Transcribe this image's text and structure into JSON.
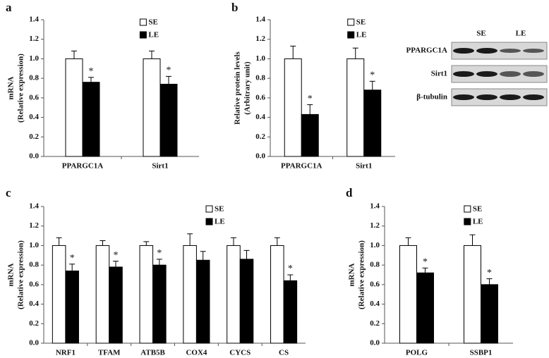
{
  "chart_data": [
    {
      "type": "bar",
      "panel_label": "a",
      "ylabel": [
        "mRNA",
        "(Relative expression)"
      ],
      "categories": [
        "PPARGC1A",
        "Sirt1"
      ],
      "series": [
        {
          "name": "SE",
          "color": "#ffffff",
          "values": [
            1.0,
            1.0
          ],
          "errors": [
            0.08,
            0.08
          ],
          "significance": [
            null,
            null
          ]
        },
        {
          "name": "LE",
          "color": "#000000",
          "values": [
            0.76,
            0.74
          ],
          "errors": [
            0.05,
            0.08
          ],
          "significance": [
            "*",
            "*"
          ]
        }
      ],
      "ylim": [
        0,
        1.4
      ],
      "yticks": [
        {
          "value": 0,
          "label": "0.0"
        },
        0.2,
        0.4,
        0.6,
        0.8,
        {
          "value": 1,
          "label": "1.0"
        },
        1.2,
        1.4
      ],
      "legend": "upper right"
    },
    {
      "type": "bar",
      "panel_label": "b",
      "ylabel": [
        "Relative protein levels",
        "(Arbitrary unit)"
      ],
      "categories": [
        "PPARGC1A",
        "Sirt1"
      ],
      "series": [
        {
          "name": "SE",
          "color": "#ffffff",
          "values": [
            1.0,
            1.0
          ],
          "errors": [
            0.13,
            0.11
          ],
          "significance": [
            null,
            null
          ]
        },
        {
          "name": "LE",
          "color": "#000000",
          "values": [
            0.43,
            0.68
          ],
          "errors": [
            0.1,
            0.09
          ],
          "significance": [
            "*",
            "*"
          ]
        }
      ],
      "ylim": [
        0,
        1.4
      ],
      "yticks": [
        {
          "value": 0,
          "label": "0.0"
        },
        0.2,
        0.4,
        0.6,
        0.8,
        {
          "value": 1,
          "label": "1.0"
        },
        1.2,
        1.4
      ],
      "legend": "upper right",
      "blot_columns": [
        "SE",
        "LE"
      ],
      "blot_rows": [
        "PPARGC1A",
        "Sirt1",
        "β-tubulin"
      ]
    },
    {
      "type": "bar",
      "panel_label": "c",
      "ylabel": [
        "mRNA",
        "(Relative expression)"
      ],
      "categories": [
        "NRF1",
        "TFAM",
        "ATB5B",
        "COX4",
        "CYCS",
        "CS"
      ],
      "series": [
        {
          "name": "SE",
          "color": "#ffffff",
          "values": [
            1.0,
            1.0,
            1.0,
            1.0,
            1.0,
            1.0
          ],
          "errors": [
            0.08,
            0.05,
            0.04,
            0.12,
            0.08,
            0.08
          ],
          "significance": [
            null,
            null,
            null,
            null,
            null,
            null
          ]
        },
        {
          "name": "LE",
          "color": "#000000",
          "values": [
            0.74,
            0.78,
            0.8,
            0.85,
            0.86,
            0.64
          ],
          "errors": [
            0.07,
            0.06,
            0.06,
            0.09,
            0.09,
            0.06
          ],
          "significance": [
            "*",
            "*",
            "*",
            null,
            null,
            "*"
          ]
        }
      ],
      "ylim": [
        0,
        1.4
      ],
      "yticks": [
        {
          "value": 0,
          "label": "0.0"
        },
        0.2,
        0.4,
        0.6,
        0.8,
        {
          "value": 1,
          "label": "1.0"
        },
        1.2,
        1.4
      ],
      "legend": "upper right"
    },
    {
      "type": "bar",
      "panel_label": "d",
      "ylabel": [
        "mRNA",
        "(Relative expression)"
      ],
      "categories": [
        "POLG",
        "SSBP1"
      ],
      "series": [
        {
          "name": "SE",
          "color": "#ffffff",
          "values": [
            1.0,
            1.0
          ],
          "errors": [
            0.08,
            0.11
          ],
          "significance": [
            null,
            null
          ]
        },
        {
          "name": "LE",
          "color": "#000000",
          "values": [
            0.72,
            0.6
          ],
          "errors": [
            0.05,
            0.06
          ],
          "significance": [
            "*",
            "*"
          ]
        }
      ],
      "ylim": [
        0,
        1.4
      ],
      "yticks": [
        {
          "value": 0,
          "label": "0.0"
        },
        0.2,
        0.4,
        0.6,
        0.8,
        {
          "value": 1,
          "label": "1.0"
        },
        1.2,
        1.4
      ],
      "legend": "upper right"
    }
  ]
}
